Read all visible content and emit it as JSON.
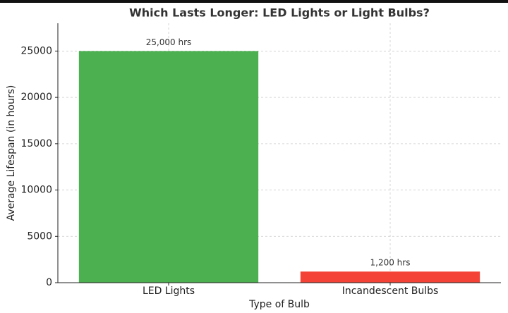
{
  "chart_data": {
    "type": "bar",
    "title": "Which Lasts Longer: LED Lights or Light Bulbs?",
    "x_label": "Type of Bulb",
    "y_label": "Average Lifespan (in hours)",
    "categories": [
      "LED Lights",
      "Incandescent Bulbs"
    ],
    "values": [
      25000,
      1200
    ],
    "value_labels": [
      "25,000 hrs",
      "1,200 hrs"
    ],
    "colors": [
      "#4caf50",
      "#f44336"
    ],
    "ylim": [
      0,
      28000
    ],
    "yticks": [
      0,
      5000,
      10000,
      15000,
      20000,
      25000
    ],
    "grid": true
  }
}
